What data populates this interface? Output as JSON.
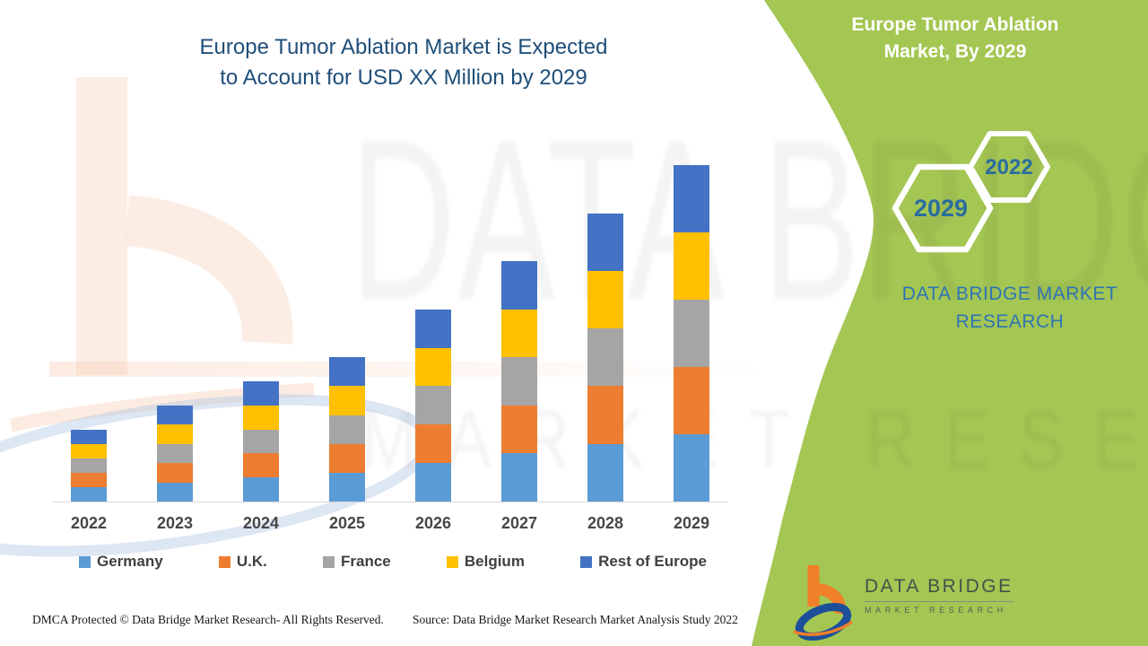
{
  "page": {
    "background": "#ffffff",
    "accent_green": "#a4c653"
  },
  "header": {
    "title": "Europe Tumor Ablation Market is Expected to Account for USD XX Million by 2029",
    "title_color": "#1f4e79"
  },
  "chart_data": {
    "type": "bar",
    "subtype": "stacked",
    "title": "Europe Tumor Ablation Market is Expected to Account for USD XX Million by 2029",
    "categories": [
      "2022",
      "2023",
      "2024",
      "2025",
      "2026",
      "2027",
      "2028",
      "2029"
    ],
    "series": [
      {
        "name": "Germany",
        "color": "#5B9BD5",
        "values": [
          3,
          4,
          5,
          6,
          8,
          10,
          12,
          14
        ]
      },
      {
        "name": "U.K.",
        "color": "#ED7D31",
        "values": [
          3,
          4,
          5,
          6,
          8,
          10,
          12,
          14
        ]
      },
      {
        "name": "France",
        "color": "#A5A5A5",
        "values": [
          3,
          4,
          5,
          6,
          8,
          10,
          12,
          14
        ]
      },
      {
        "name": "Belgium",
        "color": "#FFC000",
        "values": [
          3,
          4,
          5,
          6,
          8,
          10,
          12,
          14
        ]
      },
      {
        "name": "Rest of Europe",
        "color": "#4472C4",
        "values": [
          3,
          4,
          5,
          6,
          8,
          10,
          12,
          14
        ]
      }
    ],
    "stack_totals_relative": [
      15,
      20,
      25,
      30,
      40,
      50,
      60,
      70
    ],
    "value_note": "No y-axis is shown (values are a USD XX Million placeholder); each year's stack is split equally across the five countries; values above are relative units read from bar heights.",
    "xlabel": "",
    "ylabel": "",
    "y_axis_visible": false,
    "gridlines": false,
    "legend_position": "bottom"
  },
  "side_panel": {
    "title": "Europe Tumor Ablation Market, By 2029",
    "hexagon_front_label": "2029",
    "hexagon_back_label": "2022",
    "brand": "DATA BRIDGE MARKET RESEARCH",
    "background": "#a4c653",
    "brand_text_color": "#2e74b5",
    "hexagon_text_color": "#2a6d9e"
  },
  "logo": {
    "name": "DATA BRIDGE",
    "subtitle": "MARKET RESEARCH"
  },
  "watermark": {
    "line1": "DATA BRIDGE",
    "line2": "MARKET RESEARCH"
  },
  "footer": {
    "left": "DMCA Protected © Data Bridge Market Research- All Rights Reserved.",
    "right": "Source: Data Bridge Market Research Market Analysis Study 2022"
  }
}
